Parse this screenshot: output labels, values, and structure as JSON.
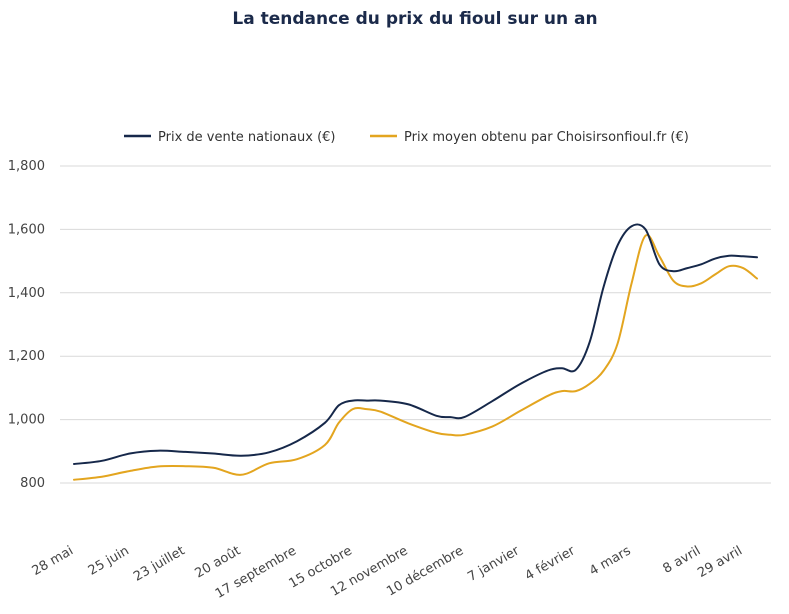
{
  "chart_data": {
    "type": "line",
    "title": "La tendance du prix du fioul sur un an",
    "ylim": [
      800,
      1800
    ],
    "yticks": [
      800,
      1000,
      1200,
      1400,
      1600,
      1800
    ],
    "ytick_labels": [
      "800",
      "1,000",
      "1,200",
      "1,400",
      "1,600",
      "1,800"
    ],
    "xlim": [
      0,
      49
    ],
    "x_ticks": [
      {
        "label": "28 mai",
        "x": 0
      },
      {
        "label": "25 juin",
        "x": 4
      },
      {
        "label": "23 juillet",
        "x": 8
      },
      {
        "label": "20 août",
        "x": 12
      },
      {
        "label": "17 septembre",
        "x": 16
      },
      {
        "label": "15 octobre",
        "x": 20
      },
      {
        "label": "12 novembre",
        "x": 24
      },
      {
        "label": "10 décembre",
        "x": 28
      },
      {
        "label": "7 janvier",
        "x": 32
      },
      {
        "label": "4 février",
        "x": 36
      },
      {
        "label": "4 mars",
        "x": 40
      },
      {
        "label": "8 avril",
        "x": 45
      },
      {
        "label": "29 avril",
        "x": 48
      }
    ],
    "grid": true,
    "legend_position": "top",
    "series": [
      {
        "name": "Prix de vente nationaux (€)",
        "color": "#16284a",
        "x": [
          0,
          2,
          4,
          6,
          8,
          10,
          12,
          14,
          16,
          18,
          19,
          20,
          21,
          22,
          24,
          26,
          27,
          28,
          30,
          32,
          34,
          35,
          36,
          37,
          38,
          39,
          40,
          41,
          42,
          43,
          44,
          45,
          46,
          47,
          48,
          49
        ],
        "values": [
          860,
          870,
          893,
          902,
          898,
          893,
          886,
          897,
          932,
          990,
          1045,
          1060,
          1060,
          1060,
          1048,
          1012,
          1008,
          1008,
          1058,
          1112,
          1155,
          1162,
          1157,
          1245,
          1420,
          1550,
          1610,
          1600,
          1490,
          1468,
          1478,
          1490,
          1508,
          1517,
          1515,
          1512
        ]
      },
      {
        "name": "Prix moyen obtenu par Choisirsonfioul.fr (€)",
        "color": "#e3a51f",
        "x": [
          0,
          2,
          4,
          6,
          8,
          10,
          12,
          14,
          16,
          18,
          19,
          20,
          21,
          22,
          24,
          26,
          27,
          28,
          30,
          32,
          34,
          35,
          36,
          37,
          38,
          39,
          40,
          41,
          42,
          43,
          44,
          45,
          46,
          47,
          48,
          49
        ],
        "values": [
          810,
          820,
          838,
          852,
          853,
          848,
          826,
          862,
          875,
          920,
          990,
          1033,
          1033,
          1025,
          988,
          958,
          952,
          952,
          978,
          1027,
          1075,
          1090,
          1090,
          1113,
          1155,
          1240,
          1430,
          1580,
          1515,
          1438,
          1420,
          1430,
          1458,
          1484,
          1478,
          1445
        ]
      }
    ]
  }
}
